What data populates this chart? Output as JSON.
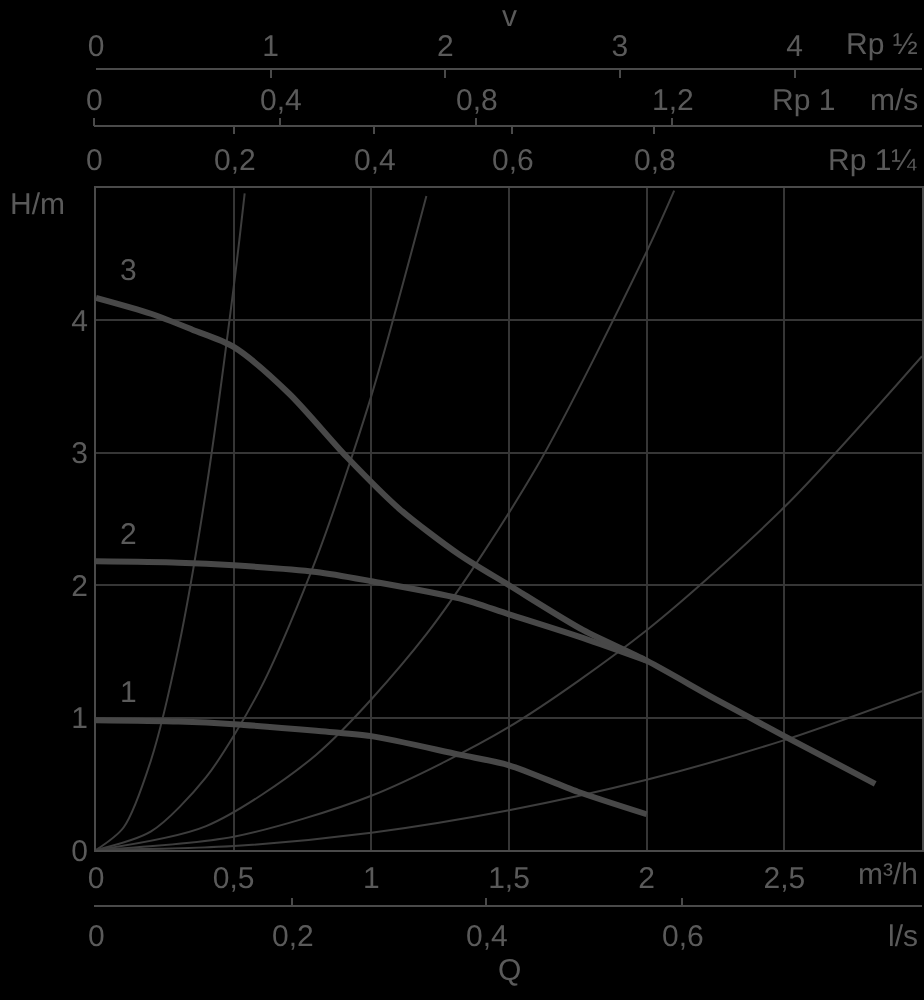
{
  "chart_data": {
    "type": "line",
    "xlabel": "Q",
    "ylabel": "H/m",
    "x2label": "v",
    "annotations": [
      "Rp ½",
      "0",
      "0,4",
      "0,8",
      "1,2",
      "Rp 1",
      "m/s",
      "0",
      "0,2",
      "0,4",
      "0,6",
      "0,8",
      "Rp 1¼",
      "m³/h",
      "0",
      "0,2",
      "0,4",
      "0,6",
      "l/s"
    ],
    "xlim": [
      0,
      3
    ],
    "xticks": [
      0,
      {
        "value": 0.5,
        "label": "0,5"
      },
      1,
      {
        "value": 1.5,
        "label": "1,5"
      },
      2,
      {
        "value": 2.5,
        "label": "2,5"
      }
    ],
    "ylim": [
      0,
      5
    ],
    "yticks": [
      0,
      1,
      2,
      3,
      4
    ],
    "x2lim": [
      0,
      4.73
    ],
    "x2ticks": [
      0,
      1,
      2,
      3,
      4
    ],
    "grid": true,
    "series": [
      {
        "color": "#3d3d3d",
        "x": [
          0,
          0.1,
          0.2,
          0.3,
          0.4,
          0.5,
          0.54
        ],
        "values": [
          0,
          0.17,
          0.68,
          1.53,
          2.72,
          4.25,
          4.96
        ]
      },
      {
        "color": "#3d3d3d",
        "x": [
          0,
          0.2,
          0.4,
          0.6,
          0.8,
          1,
          1.2
        ],
        "values": [
          0,
          0.14,
          0.55,
          1.23,
          2.2,
          3.43,
          4.94
        ]
      },
      {
        "color": "#3d3d3d",
        "x": [
          0,
          0.4,
          0.8,
          1.2,
          1.6,
          2,
          2.1
        ],
        "values": [
          0,
          0.18,
          0.72,
          1.63,
          2.89,
          4.52,
          4.98
        ]
      },
      {
        "color": "#3d3d3d",
        "x": [
          0,
          0.5,
          1,
          1.5,
          2,
          2.5,
          3
        ],
        "values": [
          0,
          0.1,
          0.41,
          0.93,
          1.66,
          2.59,
          3.73
        ]
      },
      {
        "color": "#3d3d3d",
        "x": [
          0,
          0.5,
          1,
          1.5,
          2,
          2.5,
          3
        ],
        "values": [
          0,
          0.03,
          0.13,
          0.3,
          0.53,
          0.83,
          1.2
        ]
      },
      {
        "name": "1",
        "color": "#484848",
        "x": [
          0,
          0.3,
          0.5,
          0.8,
          1,
          1.32,
          1.5,
          1.75,
          2
        ],
        "values": [
          0.98,
          0.97,
          0.95,
          0.9,
          0.86,
          0.72,
          0.64,
          0.44,
          0.27
        ]
      },
      {
        "name": "2",
        "color": "#484848",
        "x": [
          0,
          0.3,
          0.5,
          0.8,
          1,
          1.32,
          1.5,
          1.77,
          2
        ],
        "values": [
          2.18,
          2.17,
          2.15,
          2.1,
          2.03,
          1.9,
          1.78,
          1.6,
          1.43
        ]
      },
      {
        "name": "3",
        "color": "#484848",
        "x": [
          0,
          0.2,
          0.35,
          0.5,
          0.7,
          0.91,
          1.1,
          1.32,
          1.5,
          1.77,
          2,
          2.25,
          2.5,
          2.83
        ],
        "values": [
          4.17,
          4.05,
          3.93,
          3.8,
          3.45,
          2.97,
          2.58,
          2.23,
          2,
          1.66,
          1.43,
          1.14,
          0.86,
          0.5
        ]
      }
    ]
  }
}
